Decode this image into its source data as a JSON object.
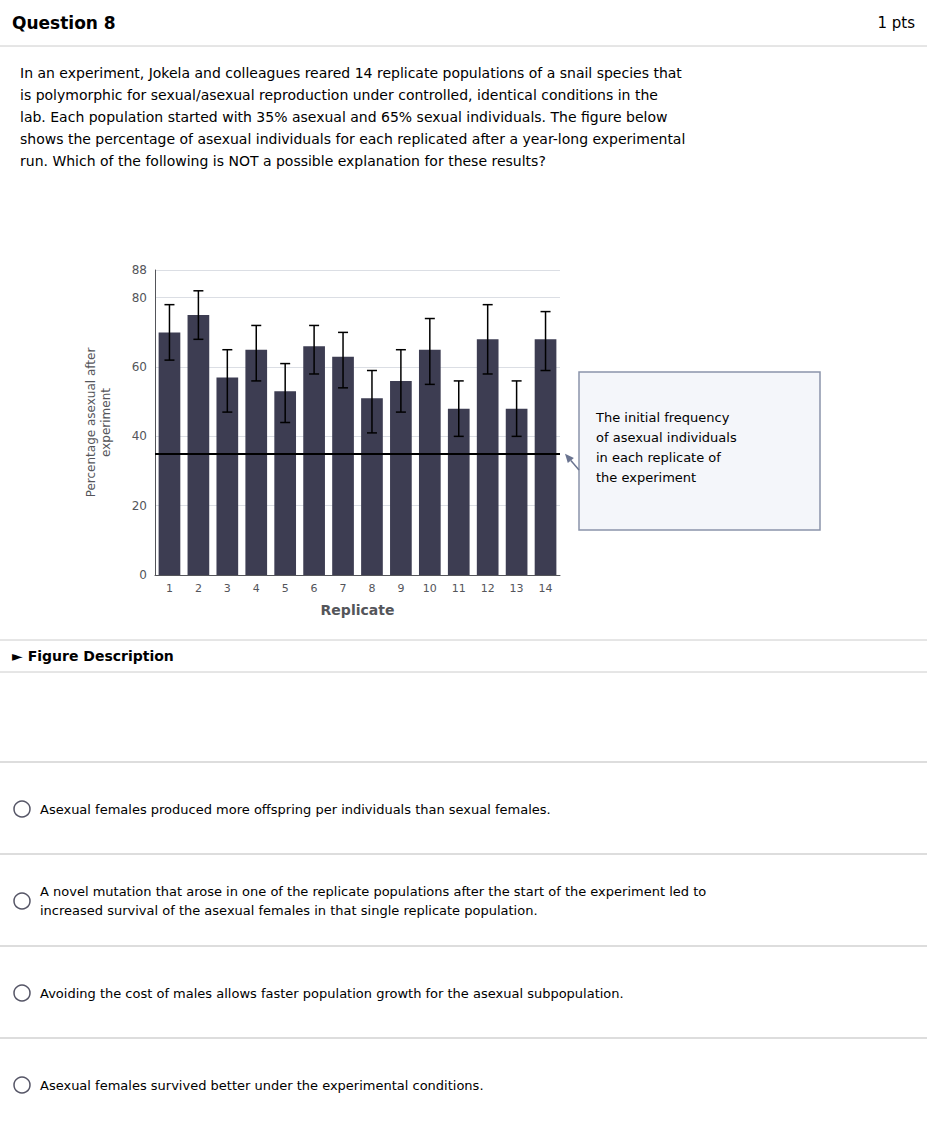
{
  "chart_data": {
    "type": "bar",
    "categories": [
      "1",
      "2",
      "3",
      "4",
      "5",
      "6",
      "7",
      "8",
      "9",
      "10",
      "11",
      "12",
      "13",
      "14"
    ],
    "values": [
      70,
      75,
      57,
      65,
      53,
      66,
      63,
      51,
      56,
      65,
      48,
      68,
      48,
      68
    ],
    "error_upper": [
      8,
      7,
      8,
      7,
      8,
      6,
      7,
      8,
      9,
      9,
      8,
      10,
      8,
      8
    ],
    "error_lower": [
      8,
      7,
      10,
      9,
      9,
      8,
      9,
      10,
      9,
      10,
      8,
      10,
      8,
      9
    ],
    "color": "#3d3d52",
    "reference_line": 35,
    "xlabel": "Replicate",
    "ylabel": "Percentage asexual after\nexperiment",
    "ylim": [
      0,
      88
    ],
    "yticks": [
      0,
      20,
      40,
      60,
      80
    ],
    "grid": true,
    "annotations": [
      "The initial frequency\nof asexual individuals\nin each replicate of\nthe experiment",
      "Question 8",
      "1 pts",
      "In an experiment, Jokela and colleagues reared 14 replicate populations of a snail species that\nis polymorphic for sexual/asexual reproduction under controlled, identical conditions in the\nlab. Each population started with 35% asexual and 65% sexual individuals. The figure below\nshows the percentage of asexual individuals for each replicated after a year-long experimental\nrun. Which of the following is NOT a possible explanation for these results?",
      "► Figure Description",
      "Asexual females produced more offspring per individuals than sexual females.",
      "A novel mutation that arose in one of the replicate populations after the start of the experiment led to\nincreased survival of the asexual females in that single replicate population.",
      "Avoiding the cost of males allows faster population growth for the asexual subpopulation.",
      "Asexual females survived better under the experimental conditions."
    ]
  }
}
